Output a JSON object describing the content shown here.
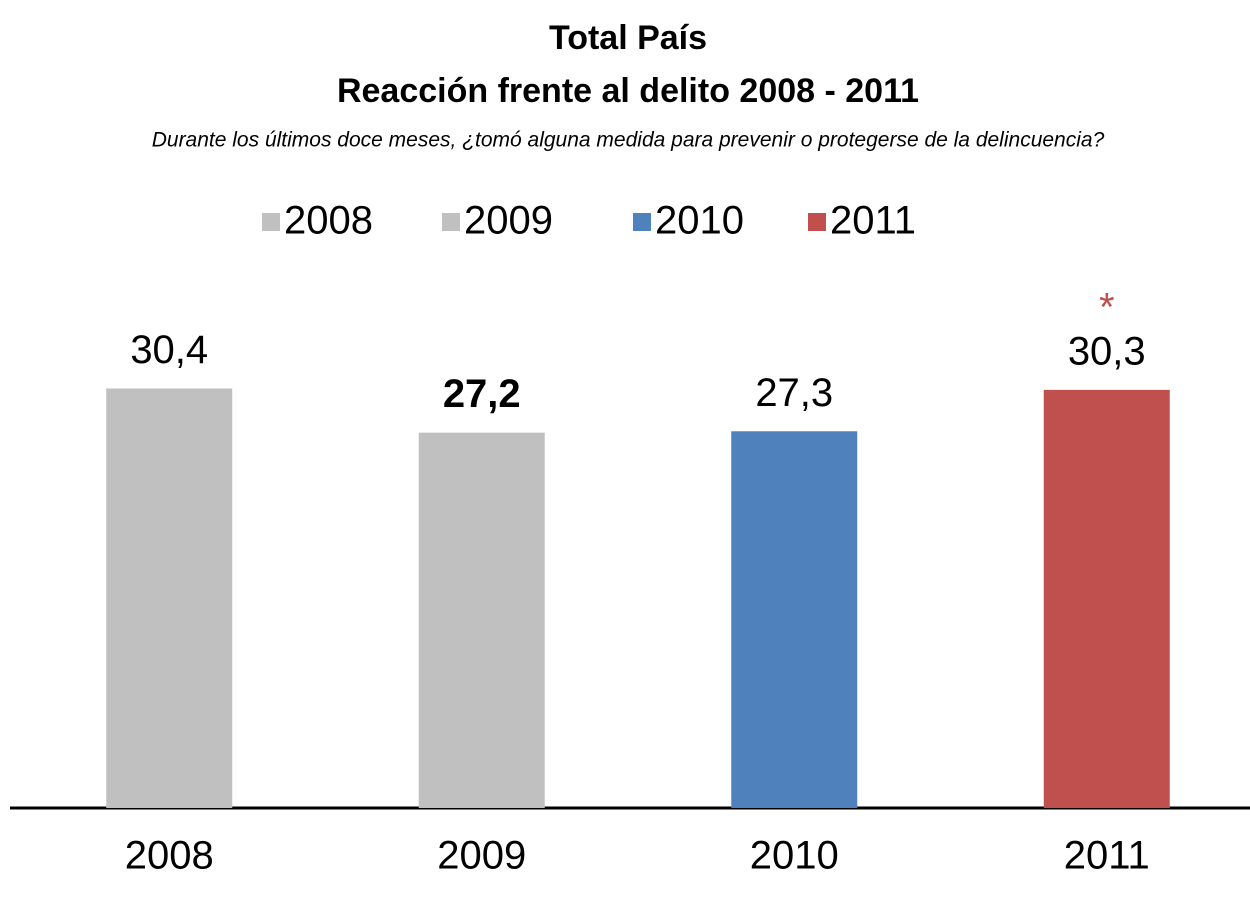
{
  "chart_data": {
    "type": "bar",
    "title": "Total País",
    "subtitle": "Reacción frente al delito 2008 - 2011",
    "question": "Durante los últimos doce meses, ¿tomó alguna medida para prevenir o protegerse de la delincuencia?",
    "categories": [
      "2008",
      "2009",
      "2010",
      "2011"
    ],
    "values": [
      30.4,
      27.2,
      27.3,
      30.3
    ],
    "value_labels": [
      "30,4",
      "27,2",
      "27,3",
      "30,3"
    ],
    "value_label_bold": [
      false,
      true,
      false,
      false
    ],
    "colors": [
      "#c0c0c0",
      "#c0c0c0",
      "#4f81bd",
      "#c0504d"
    ],
    "annotations": [
      {
        "text": "*",
        "category": 3,
        "color": "#c0504d"
      }
    ],
    "legend": true,
    "ylim": [
      0,
      35
    ]
  }
}
